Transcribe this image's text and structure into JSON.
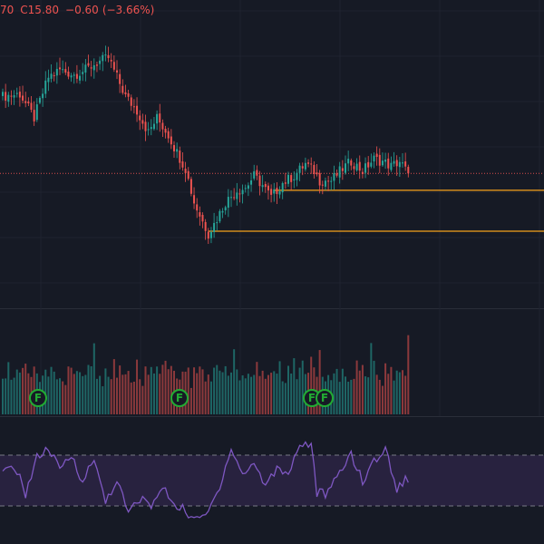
{
  "legend": {
    "open_fragment": "70",
    "close_label": "C",
    "close_value": "15.80",
    "change": "−0.60",
    "change_pct": "(−3.66%)"
  },
  "colors": {
    "background": "#161a25",
    "up": "#26a69a",
    "down": "#ef5350",
    "support_line": "#f7a21b",
    "rsi_line": "#7e57c2",
    "rsi_band": "#2a2342",
    "event_badge": "#22ab33"
  },
  "events": {
    "label": "F",
    "icon": "financials-flag-icon",
    "count": 4
  },
  "chart_data": [
    {
      "type": "candlestick",
      "title": "",
      "x_index": "bars 1-143 (oldest to newest)",
      "close_series": [
        {
          "x": 1,
          "y": 17.4
        },
        {
          "x": 7,
          "y": 17.45
        },
        {
          "x": 12,
          "y": 16.95
        },
        {
          "x": 14,
          "y": 17.3
        },
        {
          "x": 17,
          "y": 17.8
        },
        {
          "x": 21,
          "y": 17.95
        },
        {
          "x": 26,
          "y": 17.85
        },
        {
          "x": 30,
          "y": 17.95
        },
        {
          "x": 34,
          "y": 18.1
        },
        {
          "x": 38,
          "y": 18.2
        },
        {
          "x": 41,
          "y": 17.8
        },
        {
          "x": 44,
          "y": 17.4
        },
        {
          "x": 48,
          "y": 17.1
        },
        {
          "x": 52,
          "y": 16.65
        },
        {
          "x": 55,
          "y": 16.95
        },
        {
          "x": 59,
          "y": 16.6
        },
        {
          "x": 61,
          "y": 16.35
        },
        {
          "x": 65,
          "y": 15.9
        },
        {
          "x": 68,
          "y": 15.2
        },
        {
          "x": 71,
          "y": 14.8
        },
        {
          "x": 73,
          "y": 14.55
        },
        {
          "x": 75,
          "y": 14.75
        },
        {
          "x": 79,
          "y": 15.2
        },
        {
          "x": 83,
          "y": 15.45
        },
        {
          "x": 86,
          "y": 15.5
        },
        {
          "x": 89,
          "y": 15.75
        },
        {
          "x": 92,
          "y": 15.55
        },
        {
          "x": 95,
          "y": 15.3
        },
        {
          "x": 99,
          "y": 15.6
        },
        {
          "x": 103,
          "y": 15.75
        },
        {
          "x": 107,
          "y": 16.0
        },
        {
          "x": 110,
          "y": 15.85
        },
        {
          "x": 112,
          "y": 15.65
        },
        {
          "x": 116,
          "y": 15.65
        },
        {
          "x": 120,
          "y": 15.9
        },
        {
          "x": 123,
          "y": 16.05
        },
        {
          "x": 127,
          "y": 15.85
        },
        {
          "x": 131,
          "y": 16.1
        },
        {
          "x": 134,
          "y": 16.05
        },
        {
          "x": 137,
          "y": 15.95
        },
        {
          "x": 140,
          "y": 16.05
        },
        {
          "x": 143,
          "y": 15.8
        }
      ],
      "last_price": 15.8,
      "support_levels": [
        15.45,
        14.6
      ],
      "ylim": [
        13.0,
        19.4
      ]
    },
    {
      "type": "bar",
      "title": "",
      "note": "relative volume per bar",
      "volume_profile": [
        2,
        6,
        3,
        5,
        2,
        4,
        8,
        5,
        3,
        7,
        4,
        2,
        5,
        9,
        6,
        3,
        4,
        7,
        5,
        2,
        6,
        8,
        4,
        3,
        5,
        10,
        6,
        4,
        3,
        5,
        8,
        4,
        7,
        3,
        5,
        6,
        9,
        4,
        2,
        6,
        5,
        3,
        8,
        4,
        5,
        7,
        3,
        6,
        4,
        8
      ]
    },
    {
      "type": "line",
      "title": "",
      "ylim": [
        0,
        100
      ],
      "band": [
        30,
        70
      ],
      "rsi_values": [
        {
          "x": 1,
          "y": 55
        },
        {
          "x": 5,
          "y": 62
        },
        {
          "x": 9,
          "y": 40
        },
        {
          "x": 13,
          "y": 68
        },
        {
          "x": 17,
          "y": 75
        },
        {
          "x": 21,
          "y": 58
        },
        {
          "x": 25,
          "y": 70
        },
        {
          "x": 29,
          "y": 50
        },
        {
          "x": 33,
          "y": 66
        },
        {
          "x": 37,
          "y": 34
        },
        {
          "x": 41,
          "y": 50
        },
        {
          "x": 45,
          "y": 24
        },
        {
          "x": 49,
          "y": 36
        },
        {
          "x": 53,
          "y": 30
        },
        {
          "x": 57,
          "y": 44
        },
        {
          "x": 61,
          "y": 32
        },
        {
          "x": 65,
          "y": 26
        },
        {
          "x": 69,
          "y": 18
        },
        {
          "x": 73,
          "y": 25
        },
        {
          "x": 77,
          "y": 46
        },
        {
          "x": 81,
          "y": 76
        },
        {
          "x": 85,
          "y": 54
        },
        {
          "x": 89,
          "y": 64
        },
        {
          "x": 93,
          "y": 46
        },
        {
          "x": 97,
          "y": 60
        },
        {
          "x": 101,
          "y": 56
        },
        {
          "x": 105,
          "y": 78
        },
        {
          "x": 109,
          "y": 80
        },
        {
          "x": 111,
          "y": 40
        },
        {
          "x": 115,
          "y": 40
        },
        {
          "x": 119,
          "y": 56
        },
        {
          "x": 123,
          "y": 72
        },
        {
          "x": 127,
          "y": 48
        },
        {
          "x": 131,
          "y": 66
        },
        {
          "x": 135,
          "y": 74
        },
        {
          "x": 139,
          "y": 44
        },
        {
          "x": 143,
          "y": 52
        }
      ]
    }
  ]
}
